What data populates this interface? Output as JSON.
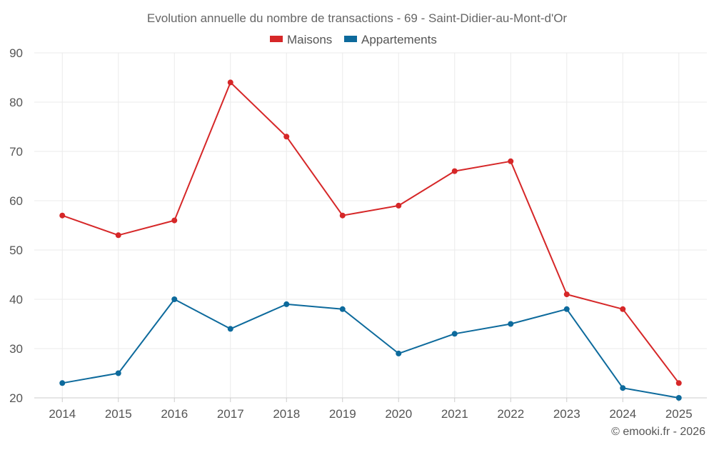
{
  "chart_data": {
    "type": "line",
    "title": "Evolution annuelle du nombre de transactions - 69 - Saint-Didier-au-Mont-d'Or",
    "categories": [
      "2014",
      "2015",
      "2016",
      "2017",
      "2018",
      "2019",
      "2020",
      "2021",
      "2022",
      "2023",
      "2024",
      "2025"
    ],
    "series": [
      {
        "name": "Maisons",
        "color": "#d62728",
        "values": [
          57,
          53,
          56,
          84,
          73,
          57,
          59,
          66,
          68,
          41,
          38,
          23
        ]
      },
      {
        "name": "Appartements",
        "color": "#0d6a9c",
        "values": [
          23,
          25,
          40,
          34,
          39,
          38,
          29,
          33,
          35,
          38,
          22,
          20
        ]
      }
    ],
    "ylim": [
      20,
      90
    ],
    "yticks": [
      20,
      30,
      40,
      50,
      60,
      70,
      80,
      90
    ],
    "grid": true,
    "legend_position": "top-center",
    "xlabel": "",
    "ylabel": ""
  },
  "credit": "© emooki.fr - 2026"
}
